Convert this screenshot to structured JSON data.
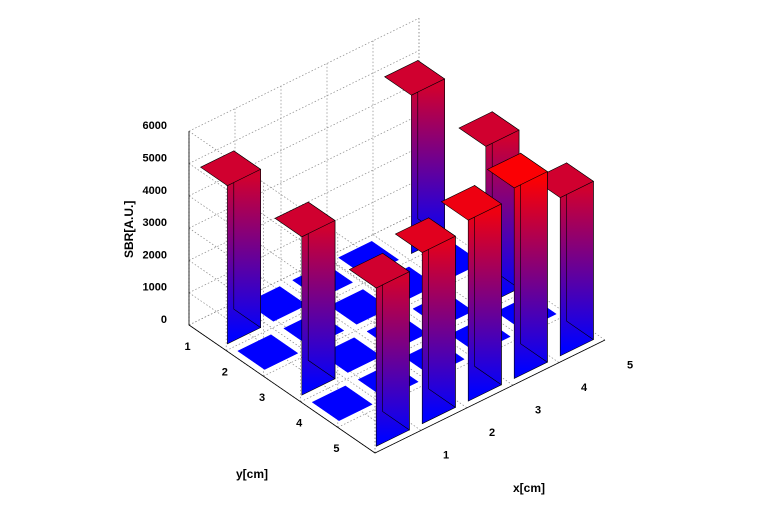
{
  "chart_data": {
    "type": "bar3d",
    "xlabel": "x[cm]",
    "ylabel": "y[cm]",
    "zlabel": "SBR[A.U.]",
    "x_ticks": [
      "1",
      "2",
      "3",
      "4",
      "5"
    ],
    "y_ticks": [
      "1",
      "2",
      "3",
      "4",
      "5"
    ],
    "z_ticks": [
      "0",
      "1000",
      "2000",
      "3000",
      "4000",
      "5000",
      "6000"
    ],
    "zlim": [
      0,
      6000
    ],
    "grid": true,
    "colormap": {
      "low": "#0000ff",
      "high": "#ff0000"
    },
    "values": [
      [
        4900,
        0,
        0,
        0,
        4900
      ],
      [
        0,
        0,
        0,
        0,
        0
      ],
      [
        4900,
        0,
        0,
        0,
        4900
      ],
      [
        0,
        0,
        0,
        0,
        0
      ],
      [
        4900,
        5300,
        5600,
        5900,
        4900
      ]
    ]
  }
}
